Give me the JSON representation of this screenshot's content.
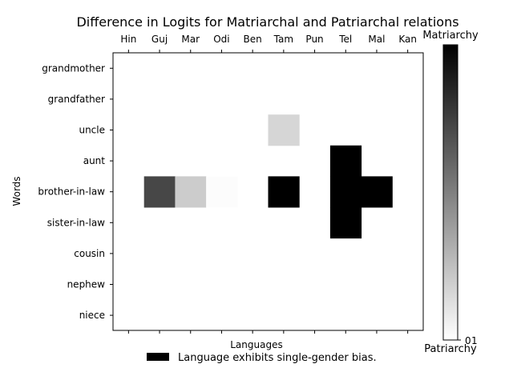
{
  "chart_data": {
    "type": "heatmap",
    "title": "Difference in Logits for Matriarchal and Patriarchal relations",
    "xlabel": "Languages",
    "ylabel": "Words",
    "x_categories": [
      "Hin",
      "Guj",
      "Mar",
      "Odi",
      "Ben",
      "Tam",
      "Pun",
      "Tel",
      "Mal",
      "Kan"
    ],
    "y_categories": [
      "grandmother",
      "grandfather",
      "uncle",
      "aunt",
      "brother-in-law",
      "sister-in-law",
      "cousin",
      "nephew",
      "niece"
    ],
    "x_tick_position": "top",
    "cells": [
      {
        "word": "uncle",
        "language": "Tam",
        "value": 0.16
      },
      {
        "word": "aunt",
        "language": "Tel",
        "value": 1.0
      },
      {
        "word": "brother-in-law",
        "language": "Guj",
        "value": 0.72
      },
      {
        "word": "brother-in-law",
        "language": "Mar",
        "value": 0.2
      },
      {
        "word": "brother-in-law",
        "language": "Odi",
        "value": 0.01
      },
      {
        "word": "brother-in-law",
        "language": "Tam",
        "value": 1.0
      },
      {
        "word": "brother-in-law",
        "language": "Tel",
        "value": 1.0
      },
      {
        "word": "brother-in-law",
        "language": "Mal",
        "value": 1.0
      },
      {
        "word": "sister-in-law",
        "language": "Tel",
        "value": 1.0
      }
    ],
    "colorbar": {
      "colormap": "gray_r",
      "top_label": "Matriarchy",
      "bottom_label": "Patriarchy",
      "tick_labels": [
        "0",
        "1"
      ],
      "range": [
        0,
        1
      ]
    },
    "legend": {
      "placement": "below-axes",
      "color": "#000000",
      "label": "Language exhibits single-gender bias."
    },
    "grid": false
  }
}
